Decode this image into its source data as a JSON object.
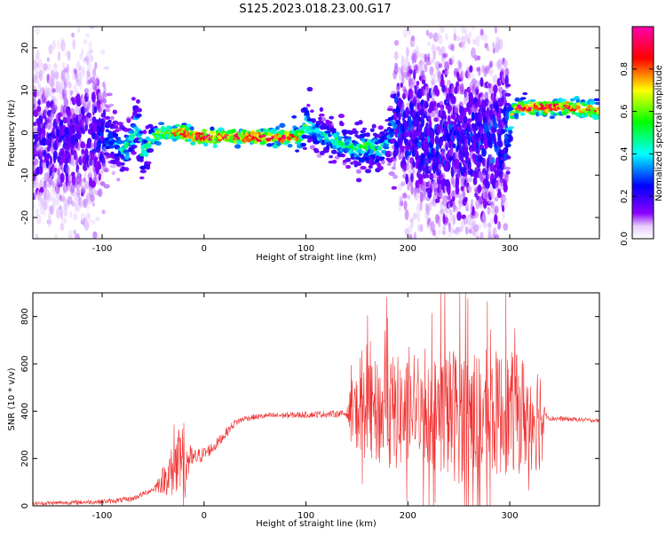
{
  "title": "S125.2023.018.23.00.G17",
  "colorbar": {
    "label": "Normalized spectral amplitude",
    "ticks": [
      "0.0",
      "0.2",
      "0.4",
      "0.6",
      "0.8"
    ],
    "range": [
      0,
      1
    ],
    "colors": [
      "#ffffff",
      "#8a00ff",
      "#0000ff",
      "#00ffff",
      "#00ff00",
      "#ffff00",
      "#ff0000",
      "#ff00b0"
    ]
  },
  "chart_data": [
    {
      "type": "heatmap",
      "xlabel": "Height of straight line (km)",
      "ylabel": "Frequency (Hz)",
      "xlim": [
        -168,
        388
      ],
      "ylim": [
        -25,
        25
      ],
      "xticks": [
        -100,
        0,
        100,
        200,
        300
      ],
      "yticks": [
        -20,
        -10,
        0,
        10,
        20
      ],
      "grid": false,
      "ridge": {
        "x": [
          -165,
          -140,
          -110,
          -95,
          -85,
          -75,
          -65,
          -60,
          -55,
          -50,
          -40,
          -30,
          -20,
          -10,
          0,
          20,
          40,
          60,
          80,
          90,
          95,
          100,
          105,
          110,
          120,
          130,
          140,
          150,
          160,
          170,
          180,
          185,
          190,
          200,
          220,
          240,
          260,
          280,
          295,
          300,
          305,
          320,
          340,
          360,
          388
        ],
        "y": [
          -2,
          -2,
          -1,
          -1,
          -3,
          -4,
          2,
          -5,
          -3,
          -1,
          0,
          0,
          0,
          -1,
          -1,
          -1,
          -1,
          -1,
          -1,
          -1,
          -1,
          2,
          1,
          0,
          -1,
          -2,
          -3,
          -4,
          -3,
          -4,
          -3,
          2,
          3,
          1,
          -1,
          -2,
          -2,
          -2,
          -1,
          2,
          6,
          6,
          6,
          6,
          5
        ],
        "strength": [
          0.2,
          0.2,
          0.2,
          0.3,
          0.4,
          0.5,
          0.5,
          0.5,
          0.6,
          0.7,
          0.75,
          0.85,
          0.9,
          0.9,
          0.95,
          0.95,
          0.95,
          0.95,
          0.95,
          0.85,
          0.7,
          0.6,
          0.5,
          0.45,
          0.45,
          0.5,
          0.5,
          0.55,
          0.55,
          0.5,
          0.45,
          0.35,
          0.3,
          0.25,
          0.25,
          0.25,
          0.25,
          0.25,
          0.3,
          0.5,
          0.9,
          0.95,
          0.95,
          0.9,
          0.85
        ],
        "spread": [
          12,
          12,
          12,
          5,
          3,
          3,
          3,
          3,
          2,
          1.2,
          1.2,
          1,
          1,
          1,
          0.8,
          0.8,
          0.8,
          0.8,
          1,
          1.5,
          2,
          2.5,
          2.5,
          2.5,
          2.5,
          2.5,
          2.5,
          2.5,
          2.5,
          2.5,
          2.5,
          5,
          8,
          12,
          14,
          14,
          14,
          13,
          12,
          3,
          1,
          1,
          1,
          1,
          1
        ]
      }
    },
    {
      "type": "line",
      "xlabel": "Height of straight line (km)",
      "ylabel": "SNR (10 * v/v)",
      "xlim": [
        -168,
        388
      ],
      "ylim": [
        0,
        900
      ],
      "xticks": [
        -100,
        0,
        100,
        200,
        300
      ],
      "yticks": [
        0,
        200,
        400,
        600,
        800
      ],
      "grid": false,
      "color": "#f03232",
      "baseline": {
        "x": [
          -168,
          -120,
          -90,
          -70,
          -50,
          -40,
          -30,
          -20,
          -10,
          0,
          10,
          20,
          30,
          40,
          60,
          100,
          140,
          150,
          200,
          300,
          335,
          340,
          388
        ],
        "y": [
          10,
          15,
          20,
          30,
          70,
          110,
          150,
          180,
          200,
          220,
          250,
          300,
          350,
          370,
          380,
          385,
          390,
          390,
          390,
          390,
          385,
          370,
          360
        ]
      },
      "noise_amplitude": {
        "x": [
          -168,
          -50,
          -40,
          -30,
          -25,
          -20,
          -15,
          -10,
          0,
          40,
          140,
          145,
          160,
          180,
          200,
          205,
          215,
          230,
          250,
          270,
          300,
          330,
          335,
          388
        ],
        "y": [
          8,
          12,
          60,
          120,
          160,
          180,
          80,
          40,
          30,
          12,
          15,
          140,
          200,
          260,
          230,
          120,
          200,
          260,
          300,
          280,
          260,
          240,
          12,
          8
        ]
      }
    }
  ]
}
